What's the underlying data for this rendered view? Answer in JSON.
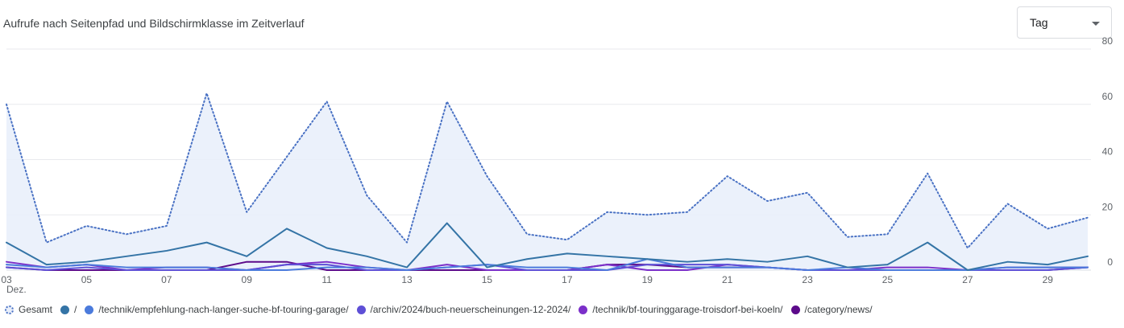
{
  "header": {
    "title": "Aufrufe nach Seitenpfad und Bildschirmklasse im Zeitverlauf"
  },
  "granularity_select": {
    "value": "Tag"
  },
  "chart_data": {
    "type": "line",
    "title": "Aufrufe nach Seitenpfad und Bildschirmklasse im Zeitverlauf",
    "x": [
      3,
      4,
      5,
      6,
      7,
      8,
      9,
      10,
      11,
      12,
      13,
      14,
      15,
      16,
      17,
      18,
      19,
      20,
      21,
      22,
      23,
      24,
      25,
      26,
      27,
      28,
      29,
      30
    ],
    "x_tick_labels": [
      "03",
      "05",
      "07",
      "09",
      "11",
      "13",
      "15",
      "17",
      "19",
      "21",
      "23",
      "25",
      "27",
      "29"
    ],
    "x_tick_values": [
      3,
      5,
      7,
      9,
      11,
      13,
      15,
      17,
      19,
      21,
      23,
      25,
      27,
      29
    ],
    "x_sublabel": "Dez.",
    "ylim": [
      0,
      80
    ],
    "y_ticks": [
      0,
      20,
      40,
      60,
      80
    ],
    "y_axis_position": "right",
    "grid": true,
    "legend_position": "bottom",
    "series": [
      {
        "name": "Gesamt",
        "color": "#4a72c4",
        "style": "dotted-area",
        "values": [
          60,
          10,
          16,
          13,
          16,
          64,
          21,
          41,
          61,
          27,
          10,
          61,
          34,
          13,
          11,
          21,
          20,
          21,
          34,
          25,
          28,
          12,
          13,
          35,
          8,
          24,
          15,
          19
        ]
      },
      {
        "name": "/",
        "color": "#3474a6",
        "style": "solid",
        "values": [
          10,
          2,
          3,
          5,
          7,
          10,
          5,
          15,
          8,
          5,
          1,
          17,
          1,
          4,
          6,
          5,
          4,
          3,
          4,
          3,
          5,
          1,
          2,
          10,
          0,
          3,
          2,
          5
        ]
      },
      {
        "name": "/technik/empfehlung-nach-langer-suche-bf-touring-garage/",
        "color": "#4b7bdc",
        "style": "solid",
        "values": [
          2,
          1,
          2,
          1,
          1,
          1,
          0,
          0,
          1,
          1,
          0,
          1,
          2,
          1,
          1,
          0,
          4,
          1,
          1,
          1,
          0,
          1,
          0,
          0,
          0,
          1,
          1,
          1
        ]
      },
      {
        "name": "/archiv/2024/buch-neuerscheinungen-12-2024/",
        "color": "#5e4fd6",
        "style": "solid",
        "values": [
          1,
          0,
          1,
          0,
          0,
          0,
          0,
          2,
          2,
          0,
          0,
          1,
          2,
          0,
          0,
          0,
          2,
          2,
          2,
          1,
          0,
          0,
          0,
          0,
          0,
          0,
          0,
          1
        ]
      },
      {
        "name": "/technik/bf-touringgarage-troisdorf-bei-koeln/",
        "color": "#7b2fc9",
        "style": "solid",
        "values": [
          3,
          1,
          2,
          0,
          1,
          1,
          0,
          2,
          3,
          1,
          0,
          2,
          0,
          0,
          0,
          2,
          0,
          0,
          2,
          1,
          0,
          0,
          1,
          1,
          0,
          1,
          1,
          1
        ]
      },
      {
        "name": "/category/news/",
        "color": "#5c0a8a",
        "style": "solid",
        "values": [
          1,
          0,
          0,
          0,
          0,
          0,
          3,
          3,
          0,
          0,
          0,
          0,
          0,
          0,
          0,
          2,
          2,
          1,
          1,
          1,
          0,
          0,
          0,
          0,
          0,
          0,
          0,
          1
        ]
      }
    ]
  }
}
